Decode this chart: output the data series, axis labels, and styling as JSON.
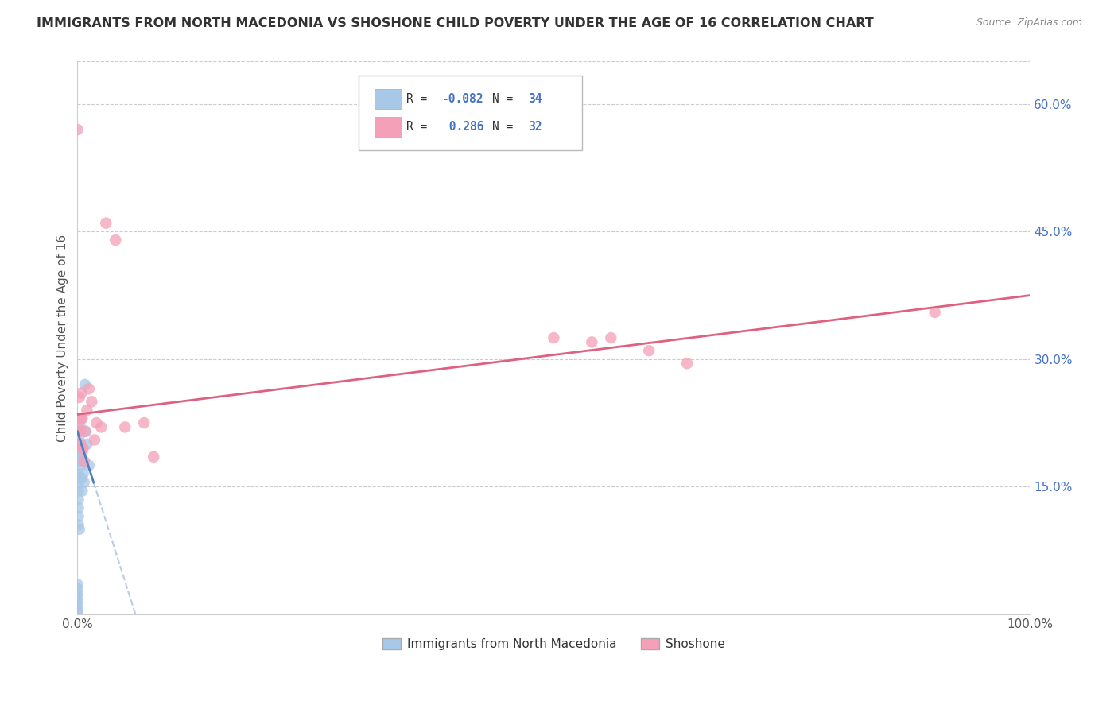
{
  "title": "IMMIGRANTS FROM NORTH MACEDONIA VS SHOSHONE CHILD POVERTY UNDER THE AGE OF 16 CORRELATION CHART",
  "source": "Source: ZipAtlas.com",
  "ylabel": "Child Poverty Under the Age of 16",
  "xlim": [
    0,
    1.0
  ],
  "ylim": [
    0,
    0.65
  ],
  "y_ticks_right": [
    0.15,
    0.3,
    0.45,
    0.6
  ],
  "y_tick_labels_right": [
    "15.0%",
    "30.0%",
    "45.0%",
    "60.0%"
  ],
  "blue_label": "Immigrants from North Macedonia",
  "pink_label": "Shoshone",
  "blue_color": "#a8c8e8",
  "pink_color": "#f4a0b8",
  "blue_line_color": "#5080c0",
  "pink_line_color": "#e06080",
  "blue_scatter_x": [
    0.0,
    0.0,
    0.0,
    0.0,
    0.0,
    0.0,
    0.0,
    0.0,
    0.001,
    0.001,
    0.001,
    0.001,
    0.001,
    0.001,
    0.001,
    0.001,
    0.002,
    0.002,
    0.002,
    0.002,
    0.002,
    0.003,
    0.003,
    0.003,
    0.004,
    0.004,
    0.005,
    0.005,
    0.006,
    0.007,
    0.008,
    0.009,
    0.01,
    0.012
  ],
  "blue_scatter_y": [
    0.035,
    0.03,
    0.025,
    0.02,
    0.015,
    0.01,
    0.005,
    0.002,
    0.18,
    0.165,
    0.155,
    0.145,
    0.135,
    0.125,
    0.115,
    0.105,
    0.21,
    0.2,
    0.19,
    0.18,
    0.1,
    0.22,
    0.195,
    0.175,
    0.2,
    0.16,
    0.19,
    0.145,
    0.165,
    0.155,
    0.27,
    0.215,
    0.2,
    0.175
  ],
  "pink_scatter_x": [
    0.0,
    0.001,
    0.001,
    0.002,
    0.002,
    0.003,
    0.003,
    0.003,
    0.004,
    0.004,
    0.005,
    0.005,
    0.006,
    0.007,
    0.008,
    0.01,
    0.012,
    0.015,
    0.018,
    0.02,
    0.025,
    0.03,
    0.04,
    0.05,
    0.07,
    0.08,
    0.5,
    0.54,
    0.56,
    0.6,
    0.64,
    0.9
  ],
  "pink_scatter_y": [
    0.57,
    0.22,
    0.2,
    0.255,
    0.23,
    0.23,
    0.215,
    0.2,
    0.26,
    0.23,
    0.23,
    0.195,
    0.195,
    0.18,
    0.215,
    0.24,
    0.265,
    0.25,
    0.205,
    0.225,
    0.22,
    0.46,
    0.44,
    0.22,
    0.225,
    0.185,
    0.325,
    0.32,
    0.325,
    0.31,
    0.295,
    0.355
  ],
  "background_color": "#ffffff",
  "grid_color": "#cccccc"
}
